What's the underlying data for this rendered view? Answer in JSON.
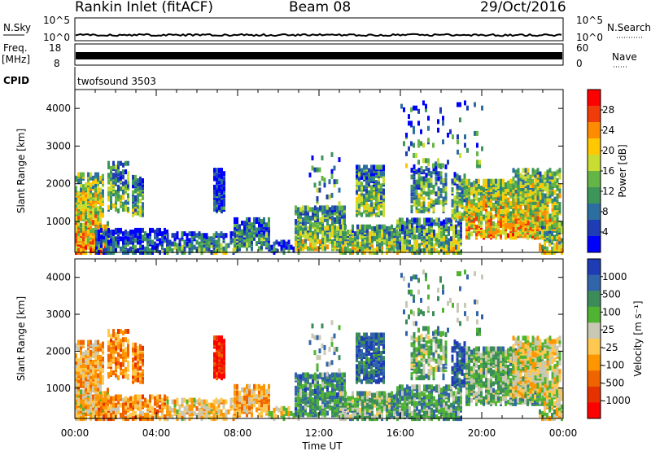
{
  "header": {
    "station": "Rankin Inlet (fitACF)",
    "beam": "Beam 08",
    "date": "29/Oct/2016"
  },
  "panels": {
    "nsky_label": "N.Sky",
    "nsearch_label": "N.Search",
    "nsky_ticks": [
      "10^5",
      "10^0"
    ],
    "nsky_right_ticks": [
      "10^5",
      "10^0"
    ],
    "freq_label": "Freq.",
    "freq_unit": "[MHz]",
    "freq_ticks": [
      "18",
      "8"
    ],
    "nave_label": "Nave",
    "nave_ticks": [
      "60",
      "0"
    ],
    "cpid_label": "CPID",
    "cpid_value": "twofsound 3503"
  },
  "chart_data": [
    {
      "type": "heatmap",
      "name": "power",
      "xlabel": "Time UT",
      "ylabel": "Slant Range [km]",
      "xlim_hours": [
        0,
        24
      ],
      "ylim": [
        180,
        4500
      ],
      "yticks": [
        1000,
        2000,
        3000,
        4000
      ],
      "colorbar_label": "Power [dB]",
      "colorbar_ticks": [
        "28",
        "24",
        "20",
        "16",
        "12",
        "8",
        "4"
      ],
      "colors": [
        "#ff0000",
        "#f03c0a",
        "#ff8c00",
        "#ffc800",
        "#c8dc32",
        "#64b446",
        "#3c965a",
        "#2d6ea0",
        "#1e3cb4",
        "#0000ff"
      ]
    },
    {
      "type": "heatmap",
      "name": "velocity",
      "xlabel": "Time UT",
      "ylabel": "Slant Range [km]",
      "xlim_hours": [
        0,
        24
      ],
      "ylim": [
        180,
        4500
      ],
      "yticks": [
        1000,
        2000,
        3000,
        4000
      ],
      "colorbar_label": "Velocity [m s⁻¹]",
      "colorbar_ticks": [
        "1000",
        "500",
        "100",
        "25",
        "-25",
        "-100",
        "-500",
        "-1000"
      ],
      "colors": [
        "#1e3cb4",
        "#3264aa",
        "#3c8c5a",
        "#50b432",
        "#c8c8b4",
        "#ffc850",
        "#ff9600",
        "#f06400",
        "#e63200",
        "#ff0000"
      ]
    }
  ],
  "x_ticks": [
    "00:00",
    "04:00",
    "08:00",
    "12:00",
    "16:00",
    "20:00",
    "00:00"
  ],
  "x_label": "Time UT"
}
